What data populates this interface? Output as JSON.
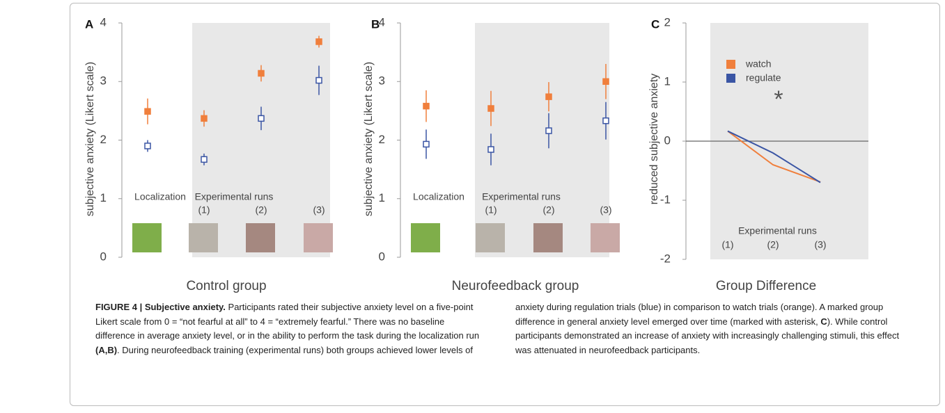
{
  "chart_data": [
    {
      "type": "errorbar",
      "panel": "A",
      "title": "Control group",
      "ylabel": "subjective anxiety (Likert scale)",
      "categories": [
        "Localization",
        "(1)",
        "(2)",
        "(3)"
      ],
      "group_label": "Experimental runs",
      "ylim": [
        0,
        4
      ],
      "yticks": [
        0,
        1,
        2,
        3,
        4
      ],
      "series": [
        {
          "name": "watch",
          "color": "#f07f3c",
          "values": [
            2.49,
            2.37,
            3.14,
            3.68
          ],
          "errors": [
            0.22,
            0.14,
            0.14,
            0.1
          ]
        },
        {
          "name": "regulate",
          "color": "#3a55a4",
          "values": [
            1.9,
            1.67,
            2.37,
            3.02
          ],
          "errors": [
            0.1,
            0.1,
            0.2,
            0.25
          ]
        }
      ]
    },
    {
      "type": "errorbar",
      "panel": "B",
      "title": "Neurofeedback group",
      "ylabel": "subjective anxiety (Likert scale)",
      "categories": [
        "Localization",
        "(1)",
        "(2)",
        "(3)"
      ],
      "group_label": "Experimental runs",
      "ylim": [
        0,
        4
      ],
      "yticks": [
        0,
        1,
        2,
        3,
        4
      ],
      "series": [
        {
          "name": "watch",
          "color": "#f07f3c",
          "values": [
            2.58,
            2.54,
            2.74,
            3.0
          ],
          "errors": [
            0.27,
            0.3,
            0.25,
            0.3
          ]
        },
        {
          "name": "regulate",
          "color": "#3a55a4",
          "values": [
            1.93,
            1.84,
            2.16,
            2.33
          ],
          "errors": [
            0.25,
            0.27,
            0.3,
            0.32
          ]
        }
      ]
    },
    {
      "type": "line",
      "panel": "C",
      "title": "Group Difference",
      "ylabel": "reduced subjective anxiety",
      "categories": [
        "(1)",
        "(2)",
        "(3)"
      ],
      "group_label": "Experimental runs",
      "ylim": [
        -2,
        2
      ],
      "yticks": [
        -2,
        -1,
        0,
        1,
        2
      ],
      "annotation": "*",
      "series": [
        {
          "name": "watch",
          "color": "#f07f3c",
          "values": [
            0.17,
            -0.4,
            -0.69
          ]
        },
        {
          "name": "regulate",
          "color": "#3a55a4",
          "values": [
            0.17,
            -0.2,
            -0.7
          ]
        }
      ]
    }
  ],
  "caption": {
    "label": "FIGURE 4 | Subjective anxiety.",
    "segments": [
      {
        "text": " Participants rated their subjective anxiety level on a five-point Likert scale from 0 = “not fearful at all” to 4 = “extremely fearful.” There was no baseline difference in average anxiety level, or in the ability to perform the task during the localization run ",
        "bold": false
      },
      {
        "text": "(A,B)",
        "bold": true
      },
      {
        "text": ". During neurofeedback training (experimental runs) both groups achieved lower levels of anxiety during regulation trials (blue) in comparison to watch trials (orange). A marked group difference in general anxiety level emerged over time (marked with asterisk, ",
        "bold": false
      },
      {
        "text": "C",
        "bold": true
      },
      {
        "text": "). While control participants demonstrated an increase of anxiety with increasingly challenging stimuli, this effect was attenuated in neurofeedback participants.",
        "bold": false
      }
    ]
  }
}
